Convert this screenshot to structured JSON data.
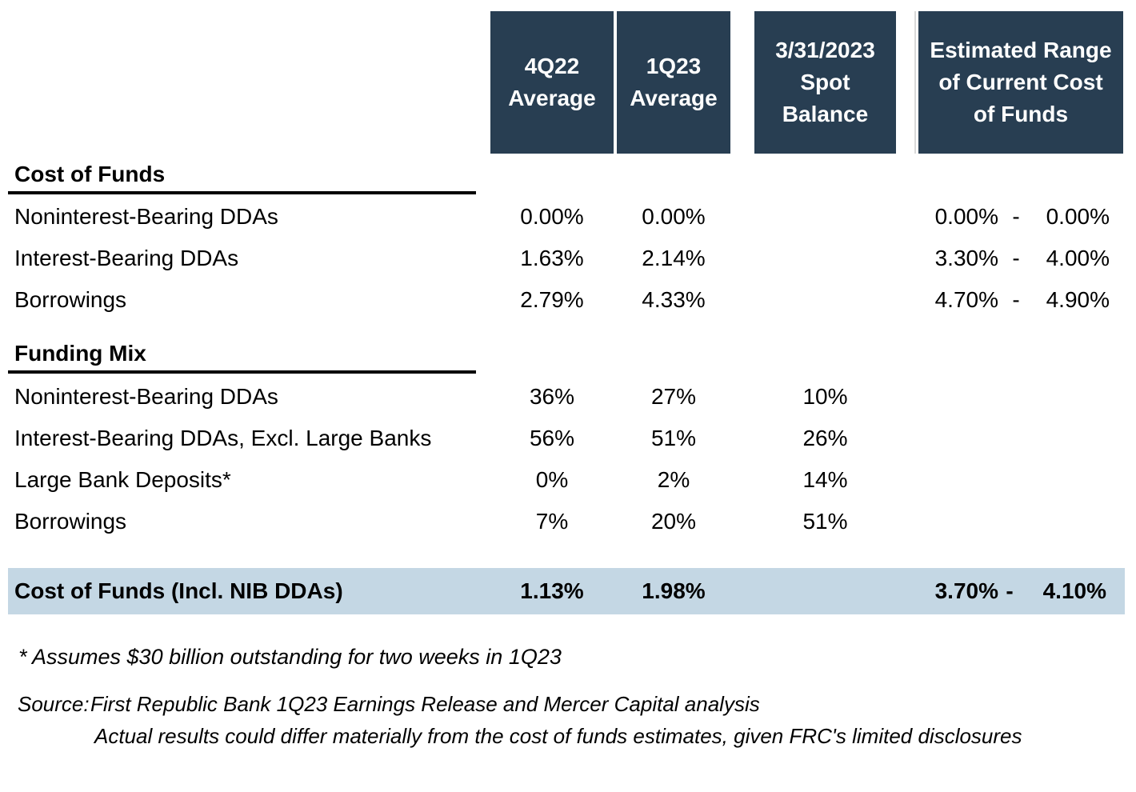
{
  "colors": {
    "header_bg": "#283E52",
    "header_text": "#FFFFFF",
    "summary_bg": "#C4D7E4",
    "divider_line": "#D9D9D9",
    "text": "#000000"
  },
  "dash": "-",
  "header_columns": [
    {
      "id": "q4_22",
      "label": "4Q22\nAverage"
    },
    {
      "id": "q1_23",
      "label": "1Q23\nAverage"
    },
    {
      "id": "spot",
      "label": "3/31/2023\nSpot\nBalance"
    },
    {
      "id": "range",
      "label": "Estimated Range\nof Current Cost\nof Funds"
    }
  ],
  "sections": [
    {
      "title": "Cost of Funds",
      "rows": [
        {
          "label": "Noninterest-Bearing DDAs",
          "q4_22": "0.00%",
          "q1_23": "0.00%",
          "spot": "",
          "range_low": "0.00%",
          "range_high": "0.00%"
        },
        {
          "label": "Interest-Bearing DDAs",
          "q4_22": "1.63%",
          "q1_23": "2.14%",
          "spot": "",
          "range_low": "3.30%",
          "range_high": "4.00%"
        },
        {
          "label": "Borrowings",
          "q4_22": "2.79%",
          "q1_23": "4.33%",
          "spot": "",
          "range_low": "4.70%",
          "range_high": "4.90%"
        }
      ]
    },
    {
      "title": "Funding Mix",
      "rows": [
        {
          "label": "Noninterest-Bearing DDAs",
          "q4_22": "36%",
          "q1_23": "27%",
          "spot": "10%"
        },
        {
          "label": "Interest-Bearing DDAs, Excl. Large Banks",
          "q4_22": "56%",
          "q1_23": "51%",
          "spot": "26%"
        },
        {
          "label": "Large Bank Deposits*",
          "q4_22": "0%",
          "q1_23": "2%",
          "spot": "14%"
        },
        {
          "label": "Borrowings",
          "q4_22": "7%",
          "q1_23": "20%",
          "spot": "51%"
        }
      ]
    }
  ],
  "summary": {
    "label": "Cost of Funds (Incl. NIB DDAs)",
    "q4_22": "1.13%",
    "q1_23": "1.98%",
    "spot": "",
    "range_low": "3.70%",
    "range_high": "4.10%"
  },
  "footnotes": {
    "asterisk_note": "* Assumes $30 billion outstanding for two weeks in 1Q23",
    "source_label": "Source:",
    "source_line1": "First Republic Bank 1Q23 Earnings Release and Mercer Capital analysis",
    "source_line2": "Actual results could differ materially from the cost of funds estimates, given FRC's limited disclosures"
  }
}
